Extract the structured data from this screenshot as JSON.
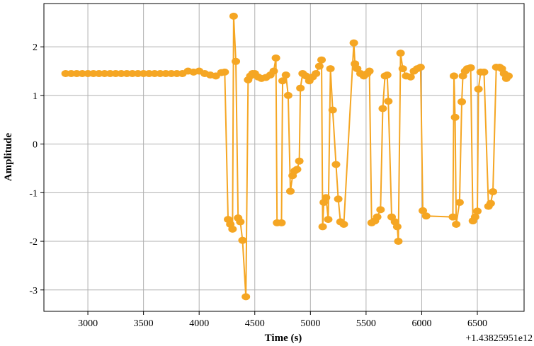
{
  "chart_data": {
    "type": "line",
    "xlabel": "Time (s)",
    "ylabel": "Amplitude",
    "offset_text": "+1.43825951e12",
    "series": [
      {
        "color": "#f5a623",
        "x": [
          2800,
          2850,
          2900,
          2950,
          3000,
          3050,
          3100,
          3150,
          3200,
          3250,
          3300,
          3350,
          3400,
          3450,
          3500,
          3550,
          3600,
          3650,
          3700,
          3750,
          3800,
          3850,
          3900,
          3950,
          4000,
          4050,
          4100,
          4150,
          4200,
          4230,
          4260,
          4280,
          4300,
          4310,
          4330,
          4350,
          4370,
          4390,
          4420,
          4440,
          4460,
          4480,
          4500,
          4530,
          4560,
          4600,
          4640,
          4670,
          4690,
          4700,
          4740,
          4750,
          4780,
          4800,
          4820,
          4840,
          4860,
          4880,
          4900,
          4910,
          4930,
          4960,
          4990,
          5020,
          5050,
          5080,
          5100,
          5110,
          5120,
          5140,
          5160,
          5180,
          5200,
          5230,
          5250,
          5270,
          5300,
          5390,
          5400,
          5420,
          5450,
          5480,
          5510,
          5530,
          5550,
          5580,
          5600,
          5630,
          5650,
          5670,
          5690,
          5700,
          5730,
          5760,
          5780,
          5790,
          5810,
          5830,
          5860,
          5900,
          5930,
          5960,
          5990,
          6010,
          6040,
          6280,
          6290,
          6300,
          6310,
          6340,
          6360,
          6370,
          6390,
          6410,
          6440,
          6460,
          6480,
          6500,
          6510,
          6530,
          6560,
          6600,
          6620,
          6640,
          6670,
          6700,
          6720,
          6740,
          6760,
          6780
        ],
        "values": [
          1.45,
          1.45,
          1.45,
          1.45,
          1.45,
          1.45,
          1.45,
          1.45,
          1.45,
          1.45,
          1.45,
          1.45,
          1.45,
          1.45,
          1.45,
          1.45,
          1.45,
          1.45,
          1.45,
          1.45,
          1.45,
          1.45,
          1.5,
          1.48,
          1.5,
          1.45,
          1.42,
          1.4,
          1.47,
          1.48,
          -1.55,
          -1.65,
          -1.75,
          2.63,
          1.7,
          -1.52,
          -1.6,
          -1.98,
          -3.14,
          1.32,
          1.4,
          1.45,
          1.45,
          1.38,
          1.35,
          1.37,
          1.42,
          1.5,
          1.77,
          -1.62,
          -1.62,
          1.3,
          1.42,
          1.0,
          -0.97,
          -0.65,
          -0.55,
          -0.52,
          -0.35,
          1.15,
          1.45,
          1.4,
          1.3,
          1.38,
          1.45,
          1.6,
          1.73,
          -1.7,
          -1.2,
          -1.1,
          -1.55,
          1.55,
          0.7,
          -0.42,
          -1.13,
          -1.6,
          -1.65,
          2.08,
          1.65,
          1.55,
          1.45,
          1.4,
          1.45,
          1.5,
          -1.62,
          -1.58,
          -1.5,
          -1.35,
          0.73,
          1.4,
          1.42,
          0.88,
          -1.5,
          -1.6,
          -1.7,
          -2.0,
          1.87,
          1.55,
          1.4,
          1.38,
          1.5,
          1.55,
          1.58,
          -1.37,
          -1.48,
          -1.5,
          1.4,
          0.55,
          -1.65,
          -1.2,
          0.87,
          1.4,
          1.5,
          1.55,
          1.57,
          -1.58,
          -1.5,
          -1.38,
          1.13,
          1.48,
          1.48,
          -1.28,
          -1.22,
          -0.98,
          1.58,
          1.58,
          1.55,
          1.45,
          1.35,
          1.4
        ]
      }
    ],
    "xlim": [
      2605,
      6920
    ],
    "xticks": [
      3000,
      3500,
      4000,
      4500,
      5000,
      5500,
      6000,
      6500
    ],
    "ylim": [
      -3.44,
      2.89
    ],
    "yticks": [
      -3,
      -2,
      -1,
      0,
      1,
      2
    ],
    "grid": true
  }
}
